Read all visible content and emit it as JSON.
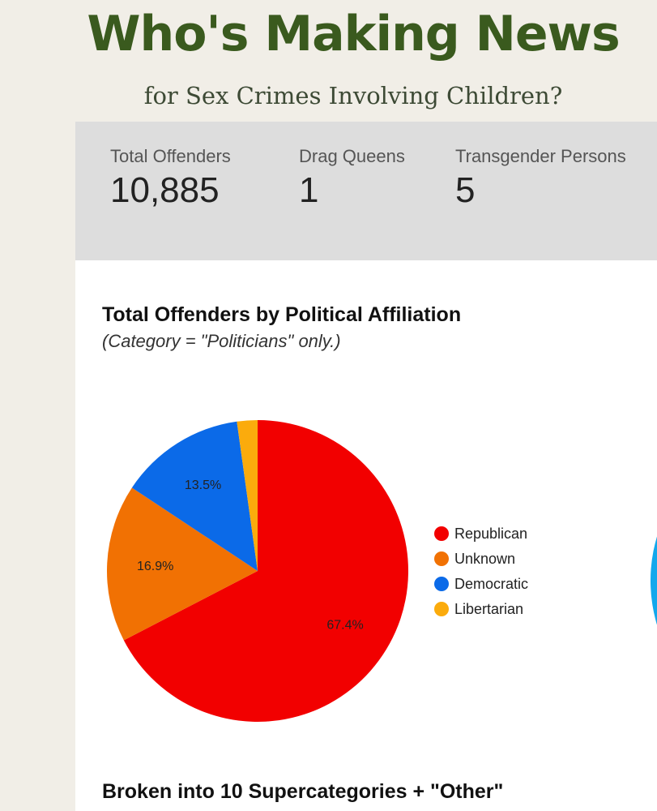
{
  "header": {
    "title": "Who's Making News",
    "subtitle": "for Sex Crimes Involving Children?"
  },
  "stats": [
    {
      "label": "Total Offenders",
      "value": "10,885"
    },
    {
      "label": "Drag Queens",
      "value": "1"
    },
    {
      "label": "Transgender Persons",
      "value": "5"
    }
  ],
  "section_heading": "Broken into 10 Supercategories + \"Other\"",
  "chart_data": {
    "type": "pie",
    "title": "Total Offenders by Political Affiliation",
    "subtitle": "(Category = \"Politicians\" only.)",
    "categories": [
      "Republican",
      "Unknown",
      "Democratic",
      "Libertarian"
    ],
    "values": [
      67.4,
      16.9,
      13.5,
      2.2
    ],
    "value_labels": [
      "67.4%",
      "16.9%",
      "13.5%",
      ""
    ],
    "colors": [
      "#f20000",
      "#f17103",
      "#0b6ae8",
      "#fbab0c"
    ],
    "legend_position": "right",
    "start_angle": "12 o'clock, clockwise"
  },
  "next_chart_partial": {
    "colors": [
      "#f17103",
      "#13a8ec"
    ]
  }
}
